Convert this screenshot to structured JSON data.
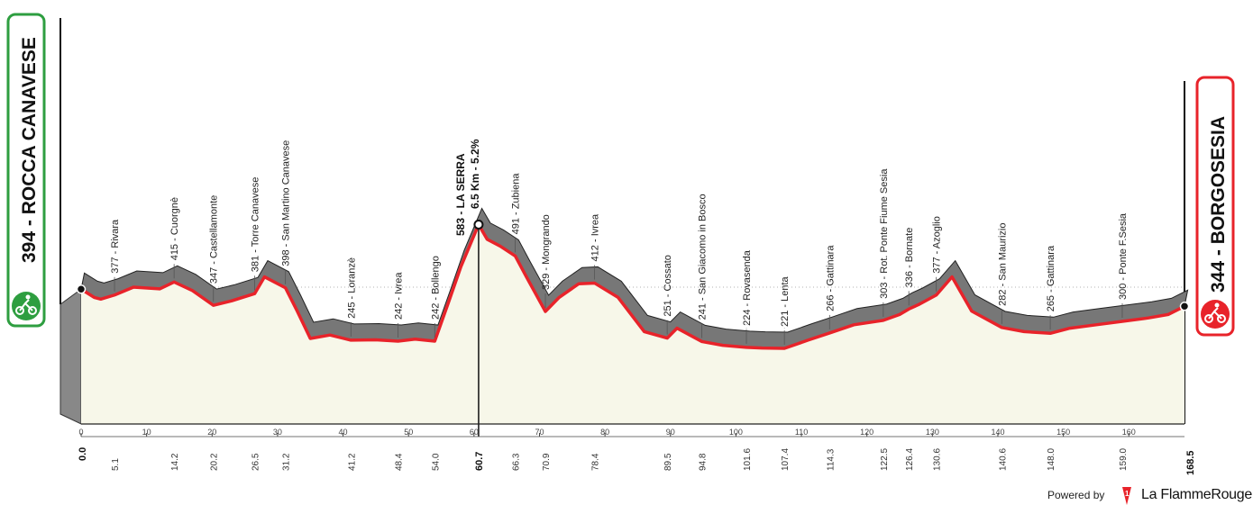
{
  "chart_data": {
    "type": "area",
    "start": {
      "label": "394 - ROCCA CANAVESE",
      "km": "0.0",
      "alt": 394
    },
    "finish": {
      "label": "344 - BORGOSESIA",
      "km": "168.5",
      "alt": 344
    },
    "climb": {
      "line1": "583 - LA SERRA",
      "line2": "6.5 Km - 5.2%",
      "km": 60.7,
      "km_label": "60.7"
    },
    "x_ticks": [
      0,
      10,
      20,
      30,
      40,
      50,
      60,
      70,
      80,
      90,
      100,
      110,
      120,
      130,
      140,
      150,
      160
    ],
    "alt_ticks": [
      200,
      400
    ],
    "xlim": [
      0,
      168.5
    ],
    "waypoints": [
      {
        "label": "377 - Rivara",
        "km": 5.1,
        "km_label": "5.1"
      },
      {
        "label": "415 - Cuorgnè",
        "km": 14.2,
        "km_label": "14.2"
      },
      {
        "label": "347 - Castellamonte",
        "km": 20.2,
        "km_label": "20.2"
      },
      {
        "label": "381 - Torre Canavese",
        "km": 26.5,
        "km_label": "26.5"
      },
      {
        "label": "398 - San Martino Canavese",
        "km": 31.2,
        "km_label": "31.2"
      },
      {
        "label": "245 - Loranzè",
        "km": 41.2,
        "km_label": "41.2"
      },
      {
        "label": "242 - Ivrea",
        "km": 48.4,
        "km_label": "48.4"
      },
      {
        "label": "242 - Bollengo",
        "km": 54.0,
        "km_label": "54.0"
      },
      {
        "label": "491 - Zubiena",
        "km": 66.3,
        "km_label": "66.3"
      },
      {
        "label": "329 - Mongrando",
        "km": 70.9,
        "km_label": "70.9"
      },
      {
        "label": "412 - Ivrea",
        "km": 78.4,
        "km_label": "78.4"
      },
      {
        "label": "251 - Cossato",
        "km": 89.5,
        "km_label": "89.5"
      },
      {
        "label": "241 - San Giacomo in Bosco",
        "km": 94.8,
        "km_label": "94.8"
      },
      {
        "label": "224 - Rovasenda",
        "km": 101.6,
        "km_label": "101.6"
      },
      {
        "label": "221 - Lenta",
        "km": 107.4,
        "km_label": "107.4"
      },
      {
        "label": "266 - Gattinara",
        "km": 114.3,
        "km_label": "114.3"
      },
      {
        "label": "303 - Rot. Ponte Fiume Sesia",
        "km": 122.5,
        "km_label": "122.5"
      },
      {
        "label": "336 - Bornate",
        "km": 126.4,
        "km_label": "126.4"
      },
      {
        "label": "377 - Azoglio",
        "km": 130.6,
        "km_label": "130.6"
      },
      {
        "label": "282 - San Maurizio",
        "km": 140.6,
        "km_label": "140.6"
      },
      {
        "label": "265 - Gattinara",
        "km": 148.0,
        "km_label": "148.0"
      },
      {
        "label": "300 - Ponte F.Sesia",
        "km": 159.0,
        "km_label": "159.0"
      }
    ],
    "profile": {
      "km": [
        0,
        2,
        3,
        5.1,
        8,
        12,
        14.2,
        17,
        20.2,
        23,
        26.5,
        28,
        31.2,
        33,
        35,
        38,
        41.2,
        45,
        48.4,
        51,
        54.0,
        56,
        58,
        60.7,
        62,
        64,
        66.3,
        68,
        70.9,
        73,
        76,
        78.4,
        82,
        86,
        89.5,
        91,
        94.8,
        98,
        101.6,
        104,
        107.4,
        111,
        114.3,
        118,
        122.5,
        125,
        126.4,
        128,
        130.6,
        133,
        136,
        140.6,
        144,
        148.0,
        151,
        155,
        159.0,
        163,
        166,
        168.5
      ],
      "alt": [
        394,
        370,
        365,
        377,
        400,
        395,
        415,
        390,
        347,
        360,
        381,
        430,
        398,
        330,
        250,
        260,
        245,
        246,
        242,
        248,
        242,
        350,
        460,
        583,
        540,
        520,
        491,
        430,
        329,
        370,
        410,
        412,
        370,
        270,
        251,
        280,
        241,
        230,
        224,
        222,
        221,
        245,
        266,
        290,
        303,
        320,
        336,
        350,
        377,
        430,
        330,
        282,
        270,
        265,
        280,
        290,
        300,
        310,
        320,
        344
      ]
    },
    "colors": {
      "fill": "#f7f7e9",
      "road": "#e8232a",
      "shadow": "#777777",
      "start_badge": "#2e9e40",
      "finish_badge": "#e8232a"
    }
  },
  "footer": {
    "powered_by": "Powered by",
    "brand": "La FlammeRouge"
  }
}
